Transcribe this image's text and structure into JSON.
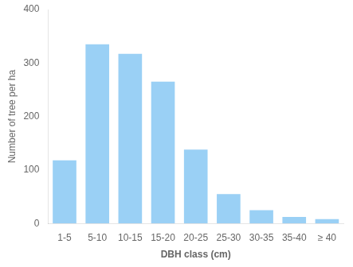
{
  "chart_data": {
    "type": "bar",
    "categories": [
      "1-5",
      "5-10",
      "10-15",
      "15-20",
      "20-25",
      "25-30",
      "30-35",
      "35-40",
      "≥ 40"
    ],
    "values": [
      118,
      335,
      317,
      265,
      138,
      55,
      25,
      12,
      8
    ],
    "xlabel": "DBH class (cm)",
    "ylabel": "Number of tree per ha",
    "ylim": [
      0,
      400
    ],
    "yticks": [
      0,
      100,
      200,
      300,
      400
    ],
    "grid": false
  }
}
